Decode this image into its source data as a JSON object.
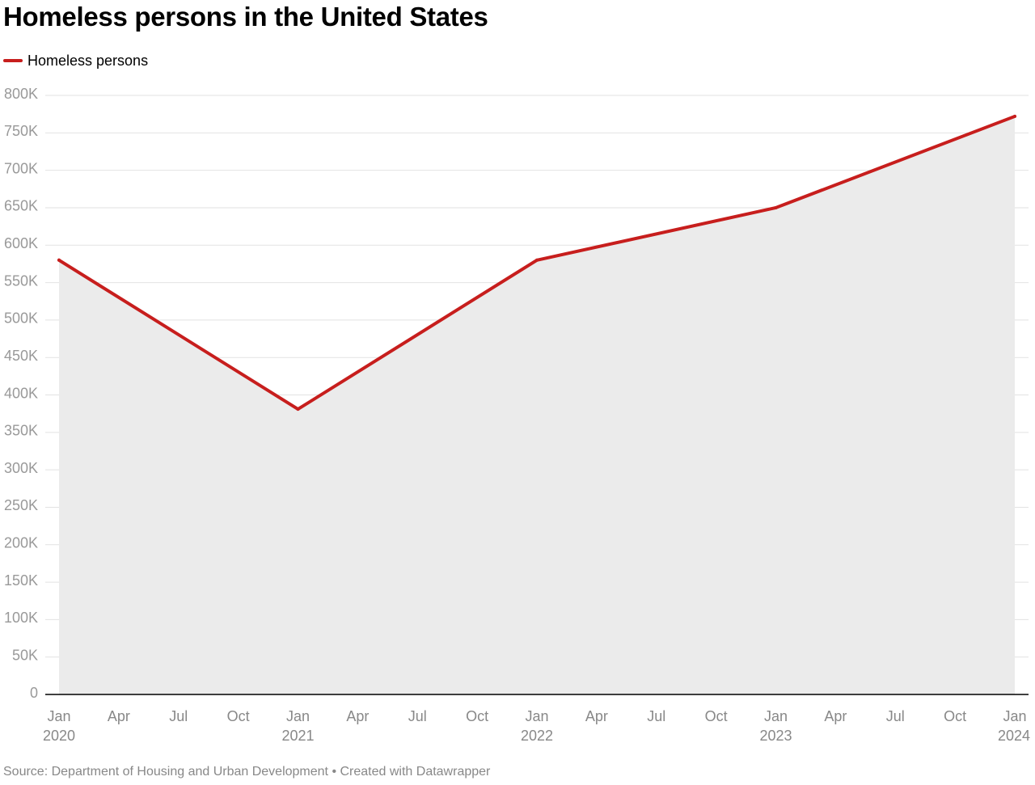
{
  "chart_data": {
    "type": "area",
    "title": "Homeless persons in the United States",
    "series": [
      {
        "name": "Homeless persons",
        "x": [
          "2020-01",
          "2021-01",
          "2022-01",
          "2023-01",
          "2024-01"
        ],
        "values": [
          580000,
          381000,
          580000,
          650000,
          772000
        ]
      }
    ],
    "ylim": [
      0,
      800000
    ],
    "y_ticks": [
      0,
      50000,
      100000,
      150000,
      200000,
      250000,
      300000,
      350000,
      400000,
      450000,
      500000,
      550000,
      600000,
      650000,
      700000,
      750000,
      800000
    ],
    "y_tick_labels": [
      "0",
      "50K",
      "100K",
      "150K",
      "200K",
      "250K",
      "300K",
      "350K",
      "400K",
      "450K",
      "500K",
      "550K",
      "600K",
      "650K",
      "700K",
      "750K",
      "800K"
    ],
    "xlim": [
      "2020-01",
      "2024-01"
    ],
    "x_ticks": [
      {
        "month": 0,
        "label": "Jan",
        "year": "2020"
      },
      {
        "month": 3,
        "label": "Apr",
        "year": ""
      },
      {
        "month": 6,
        "label": "Jul",
        "year": ""
      },
      {
        "month": 9,
        "label": "Oct",
        "year": ""
      },
      {
        "month": 12,
        "label": "Jan",
        "year": "2021"
      },
      {
        "month": 15,
        "label": "Apr",
        "year": ""
      },
      {
        "month": 18,
        "label": "Jul",
        "year": ""
      },
      {
        "month": 21,
        "label": "Oct",
        "year": ""
      },
      {
        "month": 24,
        "label": "Jan",
        "year": "2022"
      },
      {
        "month": 27,
        "label": "Apr",
        "year": ""
      },
      {
        "month": 30,
        "label": "Jul",
        "year": ""
      },
      {
        "month": 33,
        "label": "Oct",
        "year": ""
      },
      {
        "month": 36,
        "label": "Jan",
        "year": "2023"
      },
      {
        "month": 39,
        "label": "Apr",
        "year": ""
      },
      {
        "month": 42,
        "label": "Jul",
        "year": ""
      },
      {
        "month": 45,
        "label": "Oct",
        "year": ""
      },
      {
        "month": 48,
        "label": "Jan",
        "year": "2024"
      }
    ],
    "grid": true,
    "legend": "top-left",
    "source": "Source: Department of Housing and Urban Development • Created with Datawrapper"
  },
  "colors": {
    "line": "#c71e1d",
    "area": "#ebebeb",
    "grid": "#e2e2e2",
    "axis": "#000000",
    "y_tick_text": "#999999",
    "x_tick_text": "#888888"
  }
}
